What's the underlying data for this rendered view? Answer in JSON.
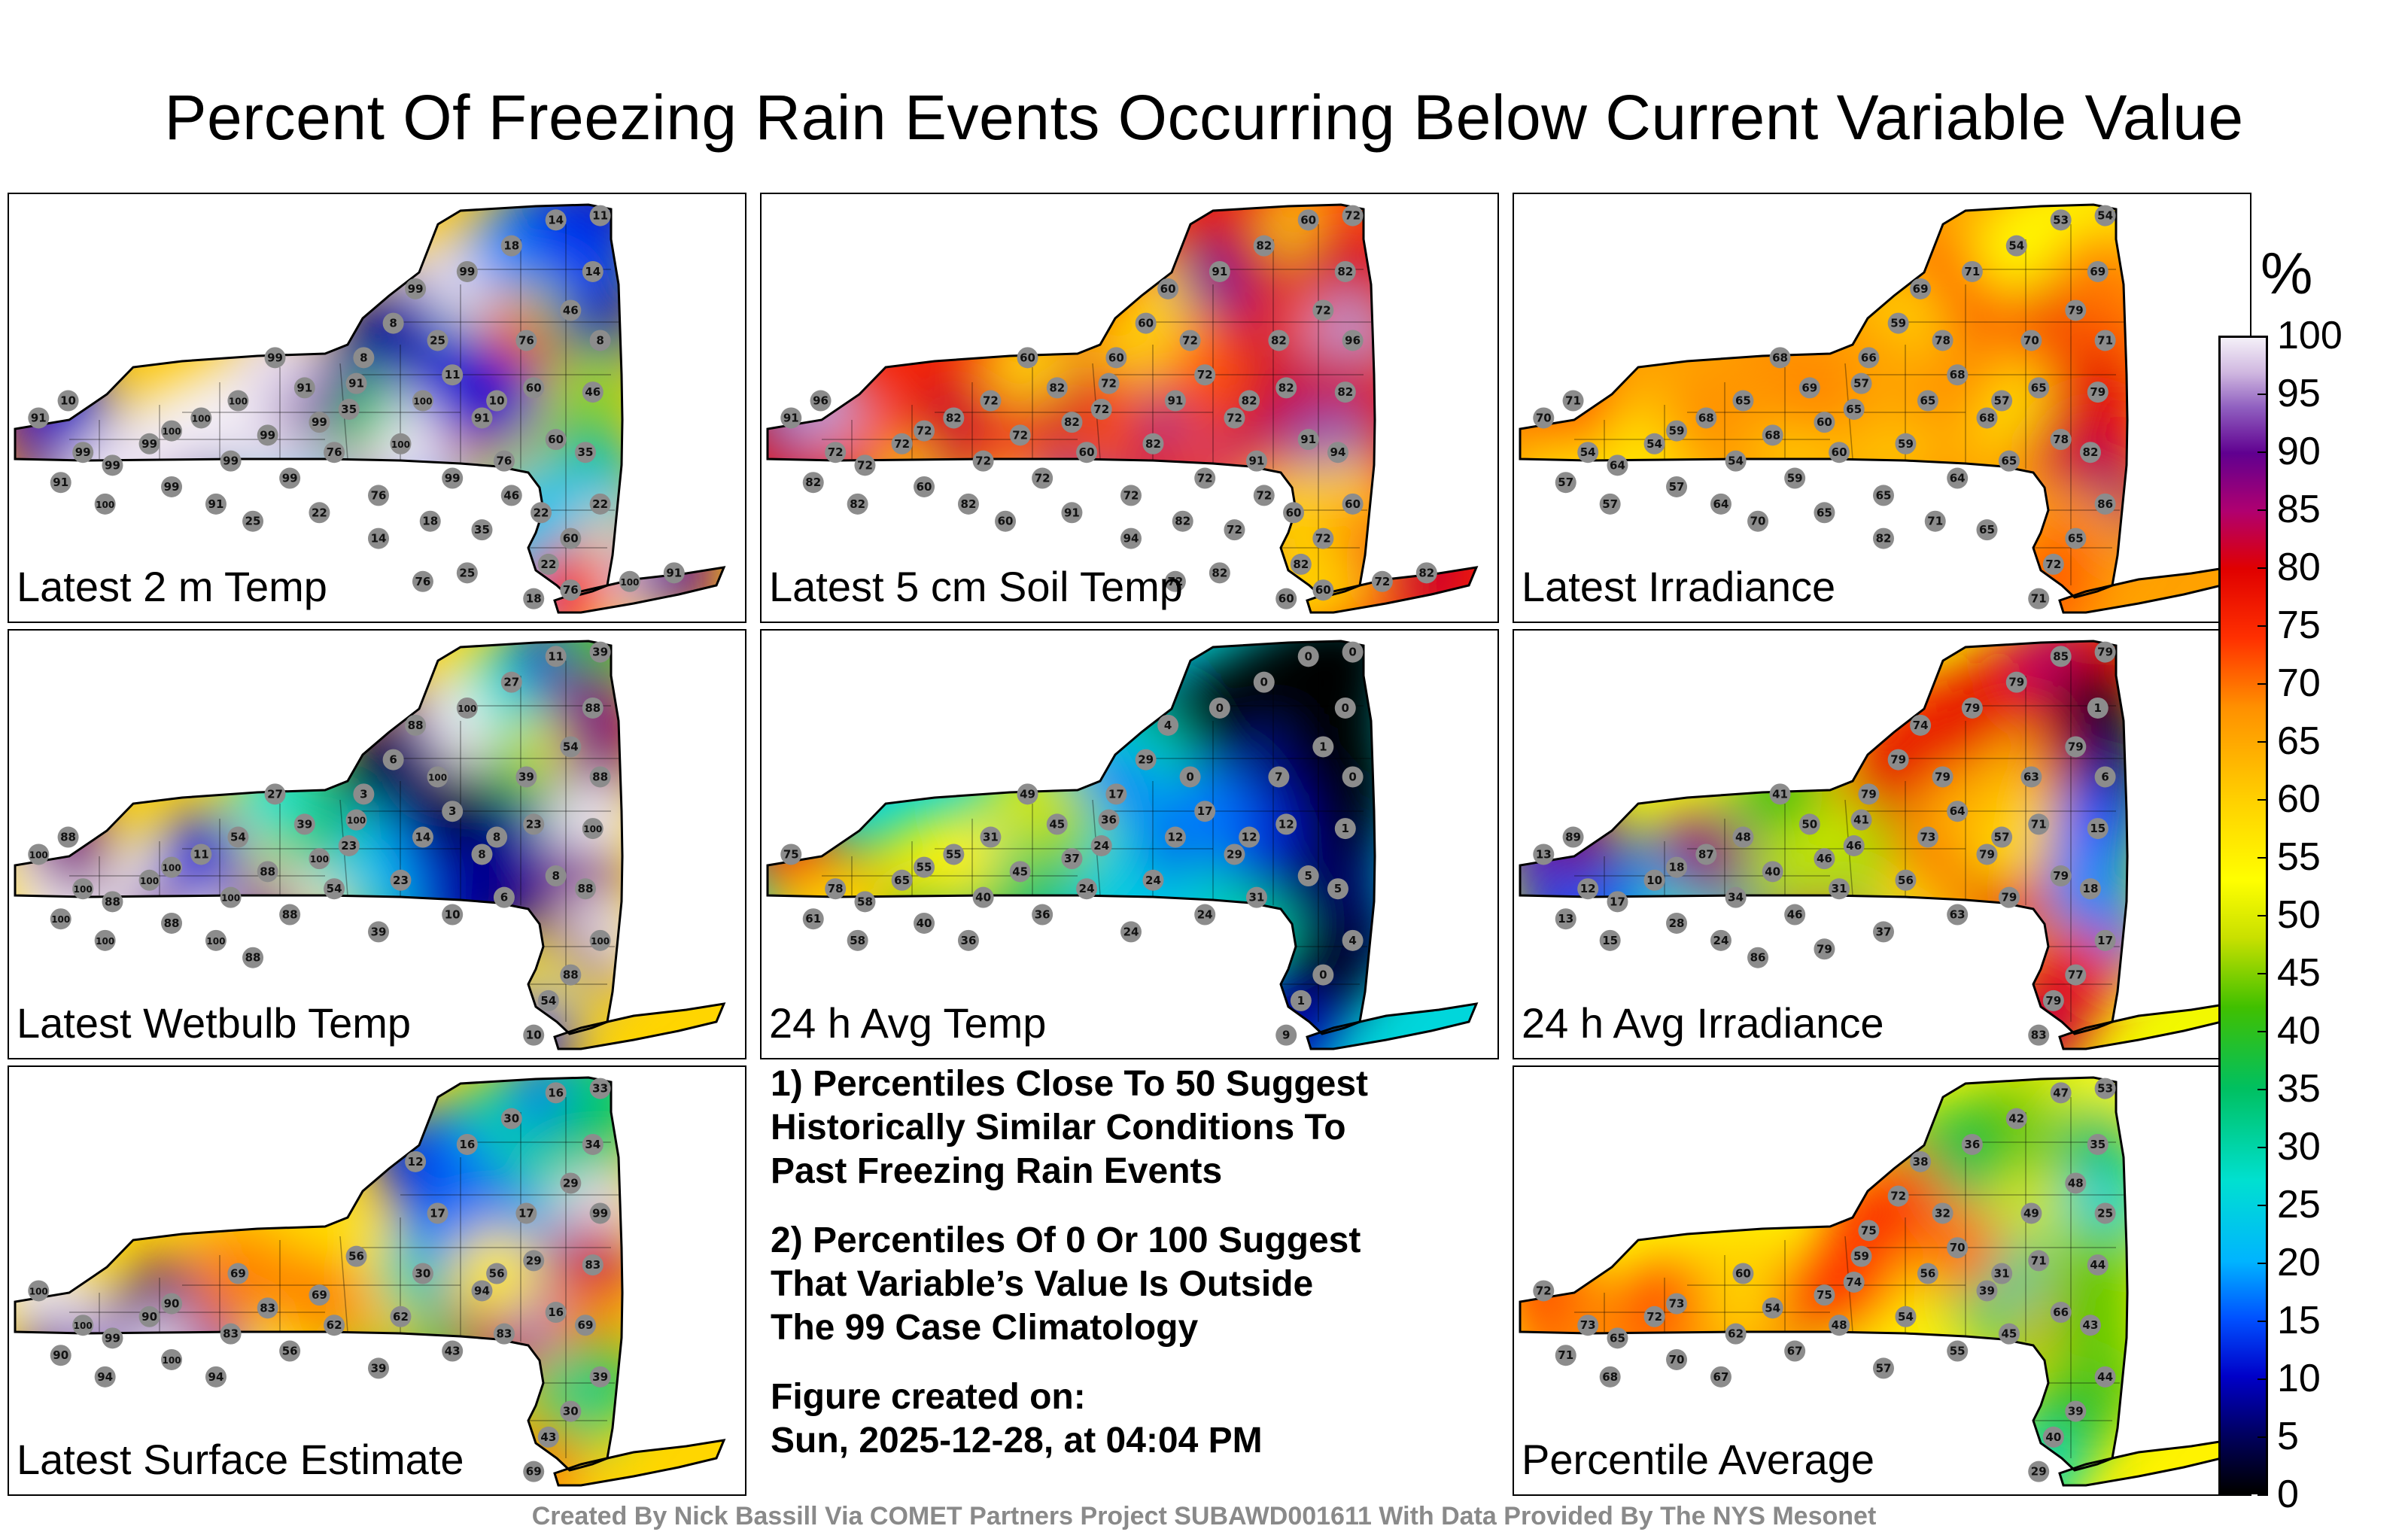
{
  "title": "Percent Of Freezing Rain Events Occurring Below Current Variable Value",
  "chart_data": {
    "type": "heatmap",
    "title": "Percent Of Freezing Rain Events Occurring Below Current Variable Value",
    "colorbar": {
      "label": "%",
      "ticks": [
        "100",
        "95",
        "90",
        "85",
        "80",
        "75",
        "70",
        "65",
        "60",
        "55",
        "50",
        "45",
        "40",
        "35",
        "30",
        "25",
        "20",
        "15",
        "10",
        "5",
        "0"
      ],
      "range": [
        0,
        100
      ],
      "stops": [
        {
          "v": 0,
          "c": "#000000"
        },
        {
          "v": 5,
          "c": "#000060"
        },
        {
          "v": 10,
          "c": "#0000c8"
        },
        {
          "v": 15,
          "c": "#0050ff"
        },
        {
          "v": 20,
          "c": "#00b4ff"
        },
        {
          "v": 27,
          "c": "#00e0d0"
        },
        {
          "v": 35,
          "c": "#00c060"
        },
        {
          "v": 42,
          "c": "#40c000"
        },
        {
          "v": 48,
          "c": "#c8e000"
        },
        {
          "v": 53,
          "c": "#ffff00"
        },
        {
          "v": 60,
          "c": "#ffd000"
        },
        {
          "v": 68,
          "c": "#ff9000"
        },
        {
          "v": 74,
          "c": "#ff3000"
        },
        {
          "v": 80,
          "c": "#e00000"
        },
        {
          "v": 85,
          "c": "#b00070"
        },
        {
          "v": 90,
          "c": "#600090"
        },
        {
          "v": 94,
          "c": "#9060c0"
        },
        {
          "v": 97,
          "c": "#d0b8e0"
        },
        {
          "v": 100,
          "c": "#f4f0f8"
        }
      ]
    },
    "panels": [
      {
        "id": "temp2m",
        "label": "Latest 2 m Temp",
        "values": [
          91,
          99,
          91,
          99,
          99,
          100,
          100,
          99,
          99,
          91,
          99,
          100,
          99,
          76,
          91,
          99,
          76,
          100,
          100,
          99,
          91,
          76,
          60,
          60,
          76,
          46,
          25,
          99,
          99,
          18,
          14,
          11,
          14,
          8,
          46,
          35,
          22,
          60,
          22,
          18,
          10,
          11,
          8,
          8,
          35,
          91,
          99,
          100,
          10,
          25,
          22,
          14,
          18,
          35,
          46,
          22,
          25,
          76,
          100,
          91,
          76
        ]
      },
      {
        "id": "soil5cm",
        "label": "Latest 5 cm Soil Temp",
        "values": [
          91,
          72,
          82,
          72,
          72,
          82,
          72,
          60,
          72,
          82,
          72,
          72,
          72,
          60,
          72,
          82,
          72,
          82,
          91,
          72,
          72,
          91,
          82,
          91,
          82,
          72,
          72,
          60,
          91,
          82,
          60,
          72,
          82,
          96,
          82,
          94,
          60,
          72,
          82,
          60,
          82,
          72,
          60,
          60,
          72,
          82,
          60,
          82,
          96,
          60,
          91,
          94,
          82,
          72,
          72,
          60,
          82,
          72,
          72,
          82,
          60
        ]
      },
      {
        "id": "irradiance",
        "label": "Latest Irradiance",
        "values": [
          70,
          54,
          57,
          64,
          54,
          57,
          59,
          57,
          54,
          64,
          68,
          65,
          59,
          60,
          57,
          60,
          65,
          59,
          65,
          64,
          68,
          65,
          65,
          78,
          70,
          79,
          78,
          69,
          71,
          54,
          53,
          54,
          69,
          71,
          79,
          82,
          86,
          65,
          72,
          71,
          57,
          68,
          59,
          66,
          65,
          69,
          68,
          68,
          71,
          70,
          65,
          82,
          71,
          65
        ]
      },
      {
        "id": "wetbulb",
        "label": "Latest Wetbulb Temp",
        "values": [
          100,
          100,
          100,
          88,
          100,
          100,
          100,
          88,
          100,
          100,
          88,
          54,
          88,
          54,
          100,
          100,
          39,
          23,
          14,
          10,
          8,
          6,
          23,
          8,
          39,
          54,
          100,
          88,
          100,
          27,
          11,
          39,
          88,
          88,
          100,
          88,
          100,
          88,
          54,
          10,
          8,
          3,
          6,
          3,
          23,
          39,
          27,
          11,
          88,
          88
        ]
      },
      {
        "id": "avgtemp",
        "label": "24 h Avg Temp",
        "values": [
          75,
          78,
          61,
          58,
          65,
          58,
          55,
          40,
          40,
          36,
          45,
          31,
          36,
          24,
          36,
          37,
          24,
          24,
          12,
          24,
          29,
          31,
          12,
          5,
          7,
          1,
          0,
          4,
          0,
          0,
          0,
          0,
          0,
          0,
          1,
          5,
          4,
          0,
          1,
          9,
          12,
          17,
          29,
          17,
          24,
          45,
          49,
          55
        ]
      },
      {
        "id": "avgirr",
        "label": "24 h Avg Irradiance",
        "values": [
          13,
          12,
          13,
          17,
          10,
          15,
          18,
          28,
          34,
          24,
          40,
          48,
          46,
          31,
          41,
          46,
          37,
          56,
          73,
          63,
          79,
          79,
          71,
          79,
          63,
          79,
          79,
          74,
          79,
          79,
          85,
          79,
          1,
          6,
          15,
          18,
          17,
          77,
          79,
          83,
          57,
          64,
          79,
          79,
          46,
          50,
          41,
          87,
          89,
          86,
          79
        ]
      },
      {
        "id": "sfcest",
        "label": "Latest Surface Estimate",
        "values": [
          100,
          100,
          90,
          99,
          90,
          94,
          90,
          100,
          83,
          94,
          83,
          69,
          56,
          62,
          56,
          69,
          39,
          62,
          30,
          43,
          94,
          83,
          29,
          16,
          17,
          29,
          17,
          12,
          16,
          30,
          16,
          33,
          34,
          99,
          83,
          69,
          39,
          30,
          43,
          69,
          56
        ]
      },
      {
        "id": "average",
        "label": "Percentile Average",
        "values": [
          72,
          73,
          71,
          65,
          72,
          68,
          73,
          70,
          62,
          67,
          54,
          60,
          67,
          48,
          59,
          75,
          57,
          54,
          56,
          55,
          39,
          45,
          71,
          66,
          49,
          48,
          32,
          38,
          36,
          42,
          47,
          53,
          35,
          25,
          44,
          43,
          44,
          39,
          40,
          29,
          31,
          70,
          72,
          75,
          74
        ]
      }
    ],
    "notes": [
      "1) Percentiles Close To 50 Suggest Historically Similar Conditions To Past Freezing Rain Events",
      "2) Percentiles Of 0 Or 100 Suggest That Variable’s Value Is Outside The 99 Case Climatology"
    ]
  },
  "notes": {
    "note1_line1": "1) Percentiles Close To 50 Suggest",
    "note1_line2": "Historically Similar Conditions To",
    "note1_line3": "Past Freezing Rain Events",
    "note2_line1": "2) Percentiles Of 0 Or 100 Suggest",
    "note2_line2": "That Variable’s Value Is Outside",
    "note2_line3": "The 99 Case Climatology",
    "created_label": "Figure created on:",
    "created_value": "Sun, 2025-12-28, at 04:04 PM"
  },
  "footer": "Created By Nick Bassill Via COMET Partners Project SUBAWD001611 With Data Provided By The NYS Mesonet"
}
